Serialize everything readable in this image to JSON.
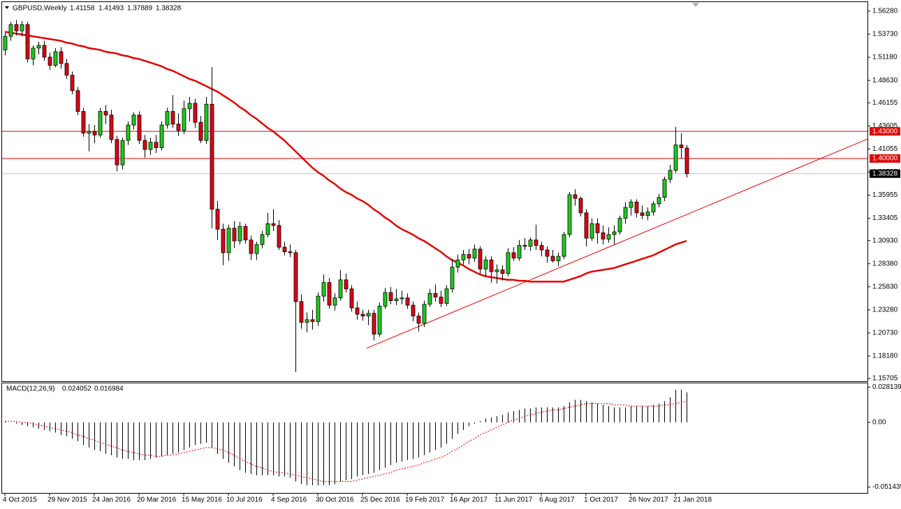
{
  "chart_data": [
    {
      "type": "candlestick",
      "title": "GBPUSD,Weekly",
      "categories": [
        "4 Oct 2015",
        null,
        null,
        null,
        null,
        null,
        null,
        null,
        "29 Nov 2015",
        null,
        null,
        null,
        null,
        null,
        null,
        null,
        "24 Jan 2016",
        null,
        null,
        null,
        null,
        null,
        null,
        null,
        "20 Mar 2016",
        null,
        null,
        null,
        null,
        null,
        null,
        null,
        "15 May 2016",
        null,
        null,
        null,
        null,
        null,
        null,
        null,
        "10 Jul 2016",
        null,
        null,
        null,
        null,
        null,
        null,
        null,
        "4 Sep 2016",
        null,
        null,
        null,
        null,
        null,
        null,
        null,
        "30 Oct 2016",
        null,
        null,
        null,
        null,
        null,
        null,
        null,
        "25 Dec 2016",
        null,
        null,
        null,
        null,
        null,
        null,
        null,
        "19 Feb 2017",
        null,
        null,
        null,
        null,
        null,
        null,
        null,
        "16 Apr 2017",
        null,
        null,
        null,
        null,
        null,
        null,
        null,
        "11 Jun 2017",
        null,
        null,
        null,
        null,
        null,
        null,
        null,
        "6 Aug 2017",
        null,
        null,
        null,
        null,
        null,
        null,
        null,
        "1 Oct 2017",
        null,
        null,
        null,
        null,
        null,
        null,
        null,
        "26 Nov 2017",
        null,
        null,
        null,
        null,
        null,
        null,
        null,
        "21 Jan 2018",
        null,
        null
      ],
      "open": [
        1.52,
        1.535,
        1.548,
        1.541,
        1.548,
        1.51,
        1.522,
        1.525,
        1.512,
        1.503,
        1.518,
        1.505,
        1.492,
        1.475,
        1.452,
        1.428,
        1.43,
        1.426,
        1.452,
        1.448,
        1.421,
        1.393,
        1.42,
        1.437,
        1.448,
        1.42,
        1.41,
        1.418,
        1.412,
        1.437,
        1.452,
        1.438,
        1.431,
        1.455,
        1.461,
        1.44,
        1.42,
        1.46,
        1.344,
        1.322,
        1.296,
        1.323,
        1.309,
        1.325,
        1.31,
        1.295,
        1.305,
        1.316,
        1.328,
        1.326,
        1.302,
        1.297,
        1.296,
        1.242,
        1.219,
        1.222,
        1.22,
        1.248,
        1.263,
        1.238,
        1.246,
        1.266,
        1.256,
        1.235,
        1.228,
        1.226,
        1.229,
        1.206,
        1.237,
        1.252,
        1.243,
        1.245,
        1.246,
        1.238,
        1.226,
        1.218,
        1.239,
        1.251,
        1.247,
        1.24,
        1.256,
        1.28,
        1.288,
        1.294,
        1.29,
        1.3,
        1.278,
        1.288,
        1.275,
        1.277,
        1.273,
        1.296,
        1.29,
        1.304,
        1.303,
        1.31,
        1.304,
        1.299,
        1.292,
        1.287,
        1.292,
        1.316,
        1.36,
        1.356,
        1.34,
        1.312,
        1.328,
        1.318,
        1.311,
        1.316,
        1.319,
        1.334,
        1.346,
        1.352,
        1.34,
        1.337,
        1.341,
        1.35,
        1.357,
        1.377,
        1.387,
        1.415,
        1.41158
      ],
      "high": [
        1.539,
        1.551,
        1.553,
        1.552,
        1.551,
        1.525,
        1.529,
        1.53,
        1.517,
        1.522,
        1.523,
        1.51,
        1.496,
        1.479,
        1.456,
        1.438,
        1.437,
        1.456,
        1.459,
        1.454,
        1.425,
        1.423,
        1.441,
        1.451,
        1.452,
        1.426,
        1.423,
        1.426,
        1.441,
        1.456,
        1.47,
        1.45,
        1.464,
        1.468,
        1.466,
        1.447,
        1.468,
        1.501,
        1.353,
        1.328,
        1.327,
        1.331,
        1.33,
        1.328,
        1.315,
        1.308,
        1.32,
        1.34,
        1.344,
        1.332,
        1.308,
        1.305,
        1.299,
        1.25,
        1.23,
        1.233,
        1.252,
        1.272,
        1.268,
        1.251,
        1.277,
        1.273,
        1.26,
        1.242,
        1.233,
        1.233,
        1.233,
        1.241,
        1.257,
        1.258,
        1.256,
        1.254,
        1.251,
        1.242,
        1.23,
        1.243,
        1.256,
        1.261,
        1.254,
        1.26,
        1.289,
        1.294,
        1.299,
        1.3,
        1.305,
        1.303,
        1.292,
        1.292,
        1.283,
        1.282,
        1.301,
        1.302,
        1.31,
        1.312,
        1.313,
        1.327,
        1.308,
        1.303,
        1.299,
        1.296,
        1.319,
        1.363,
        1.366,
        1.358,
        1.344,
        1.334,
        1.334,
        1.326,
        1.324,
        1.326,
        1.337,
        1.352,
        1.355,
        1.355,
        1.348,
        1.346,
        1.353,
        1.361,
        1.38,
        1.393,
        1.435,
        1.428,
        1.41493
      ],
      "low": [
        1.514,
        1.53,
        1.536,
        1.535,
        1.506,
        1.503,
        1.515,
        1.508,
        1.498,
        1.501,
        1.499,
        1.488,
        1.471,
        1.448,
        1.424,
        1.408,
        1.417,
        1.423,
        1.438,
        1.417,
        1.386,
        1.388,
        1.415,
        1.432,
        1.416,
        1.401,
        1.404,
        1.406,
        1.409,
        1.433,
        1.434,
        1.425,
        1.427,
        1.441,
        1.434,
        1.417,
        1.416,
        1.323,
        1.31,
        1.282,
        1.287,
        1.301,
        1.305,
        1.306,
        1.288,
        1.288,
        1.301,
        1.313,
        1.32,
        1.299,
        1.293,
        1.291,
        1.164,
        1.212,
        1.208,
        1.211,
        1.215,
        1.242,
        1.234,
        1.232,
        1.243,
        1.252,
        1.231,
        1.222,
        1.221,
        1.216,
        1.199,
        1.203,
        1.234,
        1.239,
        1.238,
        1.239,
        1.234,
        1.22,
        1.209,
        1.214,
        1.236,
        1.242,
        1.236,
        1.237,
        1.252,
        1.274,
        1.283,
        1.283,
        1.286,
        1.273,
        1.27,
        1.263,
        1.262,
        1.265,
        1.27,
        1.287,
        1.287,
        1.299,
        1.298,
        1.299,
        1.292,
        1.285,
        1.285,
        1.281,
        1.289,
        1.313,
        1.348,
        1.336,
        1.303,
        1.309,
        1.306,
        1.305,
        1.307,
        1.305,
        1.316,
        1.328,
        1.337,
        1.335,
        1.333,
        1.332,
        1.337,
        1.346,
        1.353,
        1.373,
        1.384,
        1.4,
        1.37889
      ],
      "close": [
        1.535,
        1.548,
        1.541,
        1.548,
        1.51,
        1.522,
        1.525,
        1.512,
        1.503,
        1.518,
        1.505,
        1.492,
        1.475,
        1.452,
        1.428,
        1.43,
        1.426,
        1.452,
        1.448,
        1.421,
        1.393,
        1.42,
        1.437,
        1.448,
        1.42,
        1.41,
        1.418,
        1.412,
        1.437,
        1.452,
        1.438,
        1.431,
        1.455,
        1.461,
        1.44,
        1.42,
        1.46,
        1.344,
        1.322,
        1.296,
        1.323,
        1.309,
        1.325,
        1.31,
        1.295,
        1.305,
        1.316,
        1.328,
        1.326,
        1.302,
        1.297,
        1.296,
        1.242,
        1.219,
        1.222,
        1.22,
        1.248,
        1.263,
        1.238,
        1.246,
        1.266,
        1.256,
        1.235,
        1.228,
        1.226,
        1.229,
        1.206,
        1.237,
        1.252,
        1.243,
        1.245,
        1.246,
        1.238,
        1.226,
        1.218,
        1.239,
        1.251,
        1.247,
        1.24,
        1.256,
        1.28,
        1.288,
        1.294,
        1.29,
        1.3,
        1.278,
        1.288,
        1.275,
        1.277,
        1.273,
        1.296,
        1.29,
        1.304,
        1.303,
        1.31,
        1.304,
        1.299,
        1.292,
        1.287,
        1.292,
        1.316,
        1.36,
        1.356,
        1.34,
        1.312,
        1.328,
        1.318,
        1.311,
        1.316,
        1.319,
        1.334,
        1.346,
        1.352,
        1.34,
        1.337,
        1.341,
        1.35,
        1.357,
        1.377,
        1.387,
        1.415,
        1.412,
        1.38328
      ],
      "up_color": "#1ec81e",
      "down_color": "#dc0014",
      "ma": {
        "color": "#e00000",
        "values": [
          1.54,
          1.539,
          1.538,
          1.537,
          1.536,
          1.535,
          1.534,
          1.533,
          1.532,
          1.531,
          1.53,
          1.528,
          1.527,
          1.525,
          1.524,
          1.522,
          1.521,
          1.52,
          1.518,
          1.517,
          1.516,
          1.514,
          1.513,
          1.511,
          1.51,
          1.508,
          1.506,
          1.504,
          1.502,
          1.499,
          1.497,
          1.494,
          1.491,
          1.488,
          1.486,
          1.483,
          1.48,
          1.477,
          1.474,
          1.47,
          1.466,
          1.462,
          1.457,
          1.453,
          1.448,
          1.444,
          1.439,
          1.434,
          1.43,
          1.425,
          1.42,
          1.414,
          1.408,
          1.402,
          1.396,
          1.39,
          1.385,
          1.381,
          1.376,
          1.372,
          1.367,
          1.363,
          1.36,
          1.356,
          1.353,
          1.349,
          1.344,
          1.34,
          1.335,
          1.331,
          1.326,
          1.322,
          1.319,
          1.316,
          1.312,
          1.309,
          1.305,
          1.301,
          1.297,
          1.292,
          1.288,
          1.285,
          1.282,
          1.278,
          1.275,
          1.272,
          1.27,
          1.269,
          1.268,
          1.267,
          1.266,
          1.266,
          1.265,
          1.265,
          1.264,
          1.264,
          1.264,
          1.264,
          1.264,
          1.264,
          1.264,
          1.266,
          1.268,
          1.27,
          1.273,
          1.275,
          1.276,
          1.277,
          1.278,
          1.279,
          1.281,
          1.283,
          1.285,
          1.287,
          1.289,
          1.291,
          1.293,
          1.296,
          1.299,
          1.302,
          1.305,
          1.307,
          1.309
        ]
      },
      "levels": [
        {
          "value": 1.43,
          "label": "1.43000",
          "color": "#e00000"
        },
        {
          "value": 1.4,
          "label": "1.40000",
          "color": "#e00000"
        }
      ],
      "bid_color": "#c0c0c0",
      "trendline": {
        "color": "#e00000",
        "x": [
          64.75,
          154.4
        ],
        "y": [
          1.1905,
          1.4216
        ]
      },
      "ylim": [
        1.154,
        1.5751
      ],
      "yticks": [
        {
          "value": 1.5628,
          "label": "1.56280"
        },
        {
          "value": 1.5373,
          "label": "1.53730"
        },
        {
          "value": 1.5118,
          "label": "1.51180"
        },
        {
          "value": 1.4863,
          "label": "1.48630"
        },
        1.46155,
        1.43605,
        1.41055,
        1.38505,
        1.35955,
        1.33405,
        {
          "value": 1.3093,
          "label": "1.30930"
        },
        {
          "value": 1.2838,
          "label": "1.28380"
        },
        {
          "value": 1.2583,
          "label": "1.25830"
        },
        {
          "value": 1.2328,
          "label": "1.23280"
        },
        {
          "value": 1.2073,
          "label": "1.20730"
        },
        {
          "value": 1.1818,
          "label": "1.18180"
        },
        1.15705
      ]
    },
    {
      "type": "macd",
      "title": "MACD(12,26,9)",
      "histogram": {
        "color": "#000000",
        "values": [
          0.001,
          0,
          -0.001,
          -0.002,
          -0.003,
          -0.004,
          -0.005,
          -0.006,
          -0.007,
          -0.008,
          -0.01,
          -0.011,
          -0.013,
          -0.015,
          -0.018,
          -0.02,
          -0.022,
          -0.023,
          -0.025,
          -0.026,
          -0.028,
          -0.029,
          -0.029,
          -0.03,
          -0.03,
          -0.03,
          -0.029,
          -0.028,
          -0.027,
          -0.026,
          -0.025,
          -0.024,
          -0.022,
          -0.02,
          -0.018,
          -0.017,
          -0.016,
          -0.02,
          -0.025,
          -0.029,
          -0.032,
          -0.035,
          -0.038,
          -0.04,
          -0.041,
          -0.042,
          -0.042,
          -0.042,
          -0.042,
          -0.043,
          -0.043,
          -0.044,
          -0.047,
          -0.049,
          -0.05,
          -0.05,
          -0.05,
          -0.05,
          -0.05,
          -0.049,
          -0.047,
          -0.046,
          -0.045,
          -0.043,
          -0.042,
          -0.041,
          -0.04,
          -0.038,
          -0.036,
          -0.034,
          -0.032,
          -0.031,
          -0.03,
          -0.029,
          -0.028,
          -0.026,
          -0.024,
          -0.022,
          -0.02,
          -0.017,
          -0.013,
          -0.009,
          -0.006,
          -0.003,
          -0.001,
          0.001,
          0.003,
          0.004,
          0.005,
          0.006,
          0.008,
          0.009,
          0.01,
          0.011,
          0.011,
          0.012,
          0.012,
          0.012,
          0.012,
          0.012,
          0.013,
          0.016,
          0.018,
          0.018,
          0.017,
          0.016,
          0.015,
          0.014,
          0.013,
          0.012,
          0.012,
          0.012,
          0.013,
          0.013,
          0.013,
          0.013,
          0.014,
          0.015,
          0.017,
          0.02,
          0.026,
          0.026,
          0.024052
        ]
      },
      "signal": {
        "color": "#e00000",
        "values": [
          0.001,
          0.001,
          0.001,
          0,
          0,
          -0.001,
          -0.002,
          -0.003,
          -0.004,
          -0.005,
          -0.006,
          -0.007,
          -0.008,
          -0.01,
          -0.011,
          -0.013,
          -0.014,
          -0.016,
          -0.017,
          -0.019,
          -0.02,
          -0.022,
          -0.023,
          -0.024,
          -0.025,
          -0.026,
          -0.026,
          -0.027,
          -0.027,
          -0.026,
          -0.026,
          -0.025,
          -0.024,
          -0.023,
          -0.022,
          -0.021,
          -0.02,
          -0.02,
          -0.021,
          -0.022,
          -0.024,
          -0.026,
          -0.029,
          -0.031,
          -0.033,
          -0.035,
          -0.036,
          -0.038,
          -0.039,
          -0.04,
          -0.04,
          -0.041,
          -0.042,
          -0.043,
          -0.044,
          -0.045,
          -0.046,
          -0.047,
          -0.047,
          -0.047,
          -0.047,
          -0.047,
          -0.047,
          -0.046,
          -0.045,
          -0.044,
          -0.043,
          -0.042,
          -0.041,
          -0.04,
          -0.038,
          -0.037,
          -0.036,
          -0.035,
          -0.034,
          -0.032,
          -0.031,
          -0.029,
          -0.028,
          -0.026,
          -0.023,
          -0.021,
          -0.018,
          -0.015,
          -0.013,
          -0.01,
          -0.008,
          -0.006,
          -0.004,
          -0.002,
          0,
          0.002,
          0.003,
          0.005,
          0.006,
          0.007,
          0.008,
          0.009,
          0.01,
          0.01,
          0.011,
          0.012,
          0.013,
          0.014,
          0.015,
          0.015,
          0.015,
          0.015,
          0.015,
          0.014,
          0.014,
          0.014,
          0.013,
          0.013,
          0.013,
          0.013,
          0.013,
          0.013,
          0.014,
          0.014,
          0.015,
          0.016,
          0.016984
        ]
      },
      "ylim": [
        -0.0561,
        0.0317
      ],
      "yticks": [
        0.028139,
        {
          "value": 0,
          "label": "0.00"
        },
        -0.051435
      ]
    }
  ]
}
